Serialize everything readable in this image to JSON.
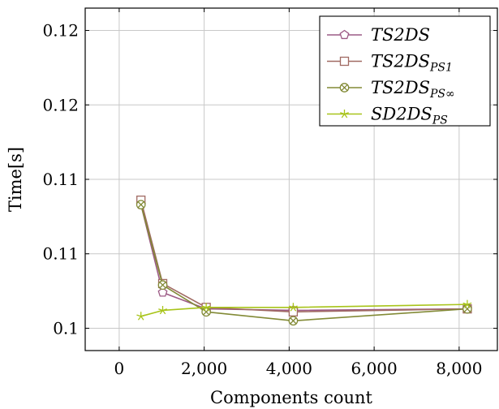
{
  "chart_data": {
    "type": "line",
    "xlabel": "Components count",
    "ylabel": "Time[s]",
    "xlim": [
      -800,
      8900
    ],
    "ylim": [
      0.0985,
      0.1215
    ],
    "xticks": [
      {
        "value": 0,
        "label": "0"
      },
      {
        "value": 2000,
        "label": "2,000"
      },
      {
        "value": 4000,
        "label": "4,000"
      },
      {
        "value": 6000,
        "label": "6,000"
      },
      {
        "value": 8000,
        "label": "8,000"
      }
    ],
    "yticks": [
      {
        "value": 0.1,
        "label": "0.1"
      },
      {
        "value": 0.105,
        "label": "0.11"
      },
      {
        "value": 0.11,
        "label": "0.11"
      },
      {
        "value": 0.115,
        "label": "0.12"
      },
      {
        "value": 0.12,
        "label": "0.12"
      }
    ],
    "grid": true,
    "legend_position": "top-right",
    "series": [
      {
        "name": "TS2DS",
        "sub": "",
        "color": "#9c5a85",
        "marker": "pentagon",
        "x": [
          512,
          1024,
          2048,
          4096,
          8192
        ],
        "y": [
          0.1083,
          0.1024,
          0.1013,
          0.1012,
          0.1013
        ]
      },
      {
        "name": "TS2DS",
        "sub": "PS1",
        "color": "#a06a62",
        "marker": "square",
        "x": [
          512,
          1024,
          2048,
          4096,
          8192
        ],
        "y": [
          0.1086,
          0.103,
          0.1014,
          0.1011,
          0.1013
        ]
      },
      {
        "name": "TS2DS",
        "sub": "PS∞",
        "color": "#828a36",
        "marker": "otimes",
        "x": [
          512,
          1024,
          2048,
          4096,
          8192
        ],
        "y": [
          0.1083,
          0.1029,
          0.1011,
          0.1005,
          0.1013
        ]
      },
      {
        "name": "SD2DS",
        "sub": "PS",
        "color": "#a8c41a",
        "marker": "star",
        "x": [
          512,
          1024,
          2048,
          4096,
          8192
        ],
        "y": [
          0.1008,
          0.1012,
          0.1014,
          0.1014,
          0.1016
        ]
      }
    ]
  }
}
